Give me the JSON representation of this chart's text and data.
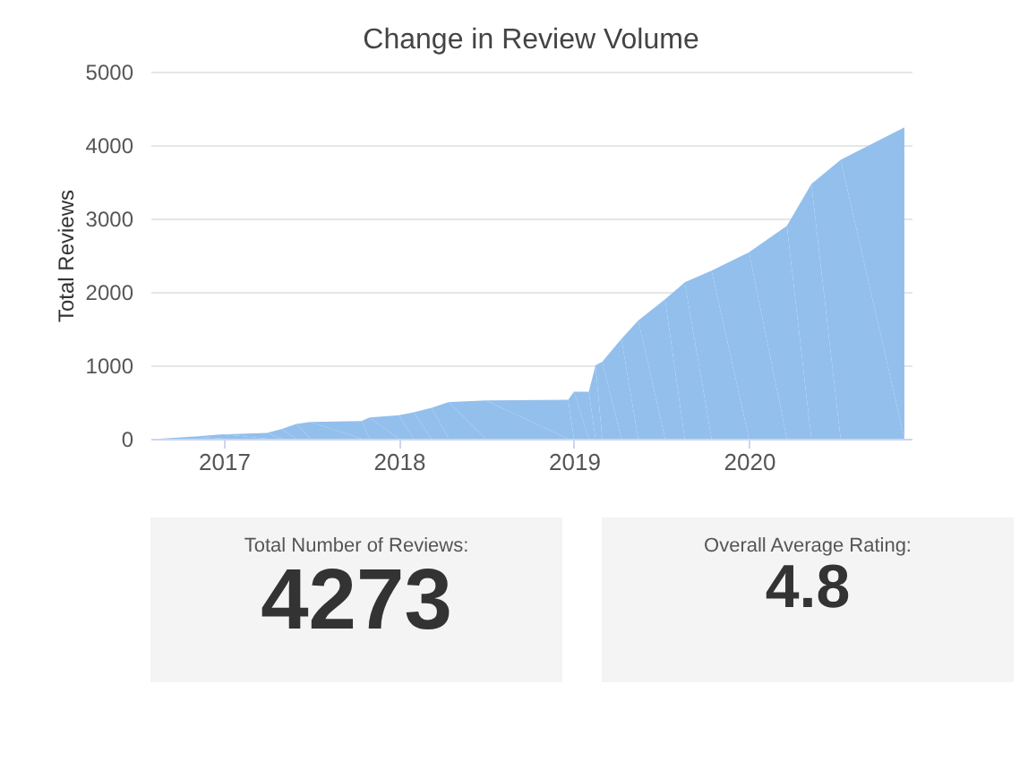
{
  "chart_data": [
    {
      "type": "area",
      "title": "Change in Review Volume",
      "ylabel": "Total Reviews",
      "x": [
        "2016-08-20",
        "2016-11-01",
        "2017-01-01",
        "2017-04-01",
        "2017-05-01",
        "2017-06-01",
        "2017-07-01",
        "2017-10-15",
        "2017-11-01",
        "2018-01-01",
        "2018-02-01",
        "2018-03-10",
        "2018-04-15",
        "2018-07-01",
        "2018-12-20",
        "2019-01-01",
        "2019-02-01",
        "2019-02-15",
        "2019-03-01",
        "2019-04-10",
        "2019-05-15",
        "2019-07-10",
        "2019-08-20",
        "2019-10-15",
        "2020-01-01",
        "2020-03-20",
        "2020-05-10",
        "2020-07-10",
        "2020-11-20"
      ],
      "series": [
        {
          "color": "#93bfec",
          "values": [
            0,
            30,
            60,
            80,
            130,
            200,
            230,
            240,
            290,
            320,
            360,
            420,
            500,
            520,
            530,
            640,
            640,
            1000,
            1050,
            1360,
            1610,
            1900,
            2130,
            2290,
            2540,
            2900,
            3470,
            3800,
            4240
          ]
        }
      ],
      "xlim": [
        "2016-08-01",
        "2020-12-05"
      ],
      "xticks": [
        {
          "value": "2017-01-01",
          "label": "2017"
        },
        {
          "value": "2018-01-01",
          "label": "2018"
        },
        {
          "value": "2019-01-01",
          "label": "2019"
        },
        {
          "value": "2020-01-01",
          "label": "2020"
        }
      ],
      "ylim": [
        0,
        5000
      ],
      "yticks": [
        0,
        1000,
        2000,
        3000,
        4000,
        5000
      ],
      "grid": "y",
      "legend": false
    },
    {
      "type": "other",
      "title": "Total Number of Reviews:",
      "values": [
        4273
      ],
      "data_labels": true
    },
    {
      "type": "other",
      "title": "Overall Average Rating:",
      "values": [
        4.8
      ],
      "data_labels": true
    }
  ]
}
